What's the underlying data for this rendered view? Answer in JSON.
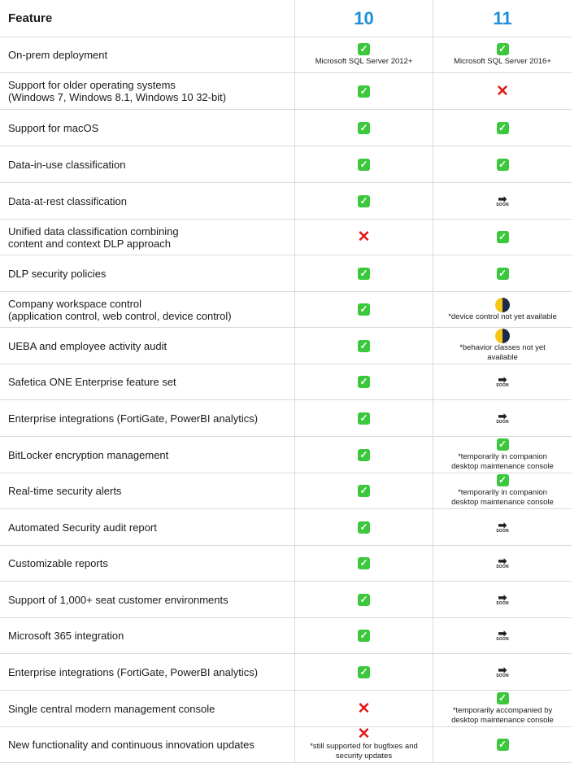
{
  "table": {
    "header": {
      "feature": "Feature",
      "v10": "10",
      "v11": "11"
    },
    "rows": [
      {
        "feature": "On-prem deployment",
        "v10": {
          "icon": "check-icon",
          "note": "Microsoft SQL Server 2012+"
        },
        "v11": {
          "icon": "check-icon",
          "note": "Microsoft SQL Server 2016+"
        }
      },
      {
        "feature": "Support for older operating systems\n(Windows 7, Windows 8.1, Windows 10 32-bit)",
        "v10": {
          "icon": "check-icon",
          "note": ""
        },
        "v11": {
          "icon": "cross-icon",
          "note": ""
        }
      },
      {
        "feature": "Support for macOS",
        "v10": {
          "icon": "check-icon",
          "note": ""
        },
        "v11": {
          "icon": "check-icon",
          "note": ""
        }
      },
      {
        "feature": "Data-in-use classification",
        "v10": {
          "icon": "check-icon",
          "note": ""
        },
        "v11": {
          "icon": "check-icon",
          "note": ""
        }
      },
      {
        "feature": "Data-at-rest classification",
        "v10": {
          "icon": "check-icon",
          "note": ""
        },
        "v11": {
          "icon": "soon-arrow-icon",
          "note": ""
        }
      },
      {
        "feature": "Unified data classification combining\ncontent and context DLP approach",
        "v10": {
          "icon": "cross-icon",
          "note": ""
        },
        "v11": {
          "icon": "check-icon",
          "note": ""
        }
      },
      {
        "feature": "DLP security policies",
        "v10": {
          "icon": "check-icon",
          "note": ""
        },
        "v11": {
          "icon": "check-icon",
          "note": ""
        }
      },
      {
        "feature": "Company workspace control\n(application control, web control, device control)",
        "v10": {
          "icon": "check-icon",
          "note": ""
        },
        "v11": {
          "icon": "half-moon-icon",
          "note": "*device control not yet available"
        }
      },
      {
        "feature": "UEBA and employee activity audit",
        "v10": {
          "icon": "check-icon",
          "note": ""
        },
        "v11": {
          "icon": "half-moon-icon",
          "note": "*behavior classes not yet\navailable"
        }
      },
      {
        "feature": "Safetica ONE Enterprise feature set",
        "v10": {
          "icon": "check-icon",
          "note": ""
        },
        "v11": {
          "icon": "soon-arrow-icon",
          "note": ""
        }
      },
      {
        "feature": "Enterprise integrations (FortiGate, PowerBI analytics)",
        "v10": {
          "icon": "check-icon",
          "note": ""
        },
        "v11": {
          "icon": "soon-arrow-icon",
          "note": ""
        }
      },
      {
        "feature": "BitLocker encryption management",
        "v10": {
          "icon": "check-icon",
          "note": ""
        },
        "v11": {
          "icon": "check-icon",
          "note": "*temporarily in companion\ndesktop maintenance console"
        }
      },
      {
        "feature": "Real-time security alerts",
        "v10": {
          "icon": "check-icon",
          "note": ""
        },
        "v11": {
          "icon": "check-icon",
          "note": "*temporarily in companion\ndesktop maintenance console"
        }
      },
      {
        "feature": "Automated Security audit report",
        "v10": {
          "icon": "check-icon",
          "note": ""
        },
        "v11": {
          "icon": "soon-arrow-icon",
          "note": ""
        }
      },
      {
        "feature": "Customizable reports",
        "v10": {
          "icon": "check-icon",
          "note": ""
        },
        "v11": {
          "icon": "soon-arrow-icon",
          "note": ""
        }
      },
      {
        "feature": "Support of 1,000+ seat customer environments",
        "v10": {
          "icon": "check-icon",
          "note": ""
        },
        "v11": {
          "icon": "soon-arrow-icon",
          "note": ""
        }
      },
      {
        "feature": "Microsoft 365 integration",
        "v10": {
          "icon": "check-icon",
          "note": ""
        },
        "v11": {
          "icon": "soon-arrow-icon",
          "note": ""
        }
      },
      {
        "feature": "Enterprise integrations (FortiGate, PowerBI analytics)",
        "v10": {
          "icon": "check-icon",
          "note": ""
        },
        "v11": {
          "icon": "soon-arrow-icon",
          "note": ""
        }
      },
      {
        "feature": "Single central modern management console",
        "v10": {
          "icon": "cross-icon",
          "note": ""
        },
        "v11": {
          "icon": "check-icon",
          "note": "*temporarily accompanied by\ndesktop maintenance console"
        }
      },
      {
        "feature": "New functionality and continuous innovation updates",
        "v10": {
          "icon": "cross-icon",
          "note": "*still supported for bugfixes and\nsecurity updates"
        },
        "v11": {
          "icon": "check-icon",
          "note": ""
        }
      }
    ]
  },
  "icons": {
    "check_symbol": "✓",
    "cross_symbol": "✕",
    "soon_arrow": "➡",
    "soon_word": "SOON"
  },
  "colors": {
    "version_heading": "#1e8fd8",
    "check": "#3cc83c",
    "cross": "#e21b1b",
    "grid": "#d9d9d9"
  }
}
